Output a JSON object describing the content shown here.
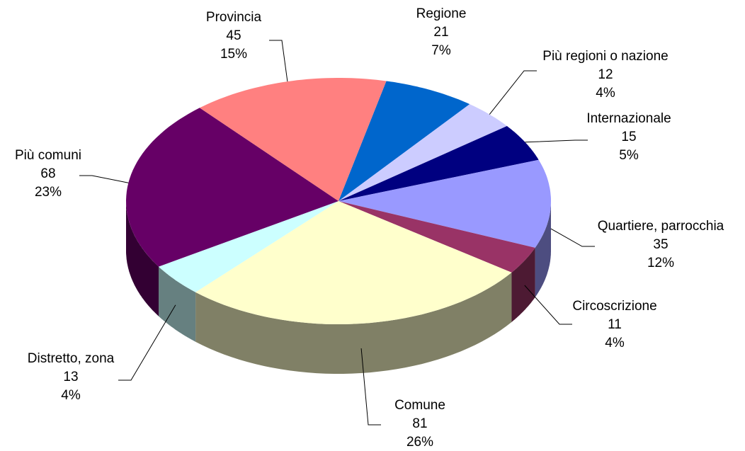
{
  "chart_data": {
    "type": "pie3d",
    "categories": [
      "Regione",
      "Più regioni o nazione",
      "Internazionale",
      "Quartiere, parrocchia",
      "Circoscrizione",
      "Comune",
      "Distretto, zona",
      "Più comuni",
      "Provincia"
    ],
    "values": [
      21,
      12,
      15,
      35,
      11,
      81,
      13,
      68,
      45
    ],
    "percentages": [
      {
        "value": 7,
        "label": "7%"
      },
      {
        "value": 4,
        "label": "4%"
      },
      {
        "value": 5,
        "label": "5%"
      },
      {
        "value": 12,
        "label": "12%"
      },
      {
        "value": 4,
        "label": "4%"
      },
      {
        "value": 26,
        "label": "26%"
      },
      {
        "value": 4,
        "label": "4%"
      },
      {
        "value": 23,
        "label": "23%"
      },
      {
        "value": 15,
        "label": "15%"
      }
    ],
    "colors": [
      "#0066cc",
      "#ccccff",
      "#000080",
      "#9999ff",
      "#993366",
      "#ffffcc",
      "#ccffff",
      "#660066",
      "#ff8080"
    ]
  }
}
